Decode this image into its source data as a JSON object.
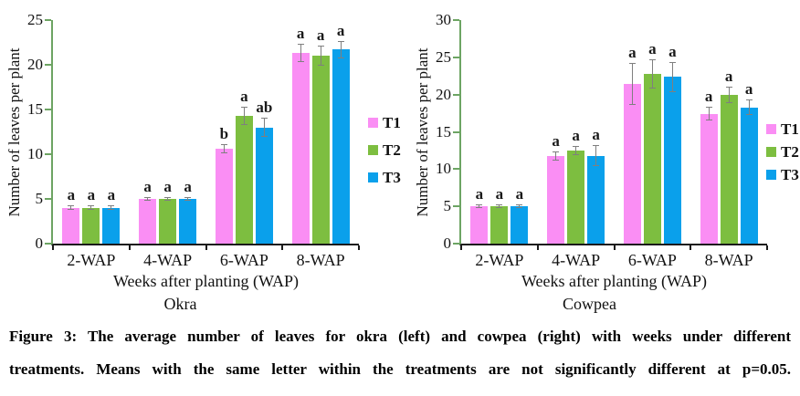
{
  "figure": {
    "caption_line1": "Figure 3: The average number of leaves for okra (left) and cowpea (right) with weeks under different",
    "caption_line2": "treatments. Means with the same letter within the treatments are not significantly different at p=0.05."
  },
  "colors": {
    "t1_pink": "#fa8ef4",
    "t2_green": "#7dbe40",
    "t3_blue": "#0aa0eb",
    "axis_green": "#6da463",
    "axis_black": "#1a1a1a",
    "error_bar_gray": "#7f7f7f"
  },
  "chart_data": [
    {
      "type": "bar",
      "title": "Okra",
      "xlabel": "Weeks after planting (WAP)",
      "ylabel": "Number of leaves per plant",
      "ylim": [
        0,
        25
      ],
      "yticks": [
        0,
        5,
        10,
        15,
        20,
        25
      ],
      "grid": false,
      "legend_position": "right",
      "categories": [
        "2-WAP",
        "4-WAP",
        "6-WAP",
        "8-WAP"
      ],
      "series": [
        {
          "name": "T1",
          "color": "#fa8ef4",
          "values": [
            4.0,
            5.0,
            10.6,
            21.3
          ],
          "errors": [
            0.15,
            0.1,
            0.4,
            0.9
          ],
          "letters": [
            "a",
            "a",
            "b",
            "a"
          ]
        },
        {
          "name": "T2",
          "color": "#7dbe40",
          "values": [
            4.0,
            5.0,
            14.3,
            21.0
          ],
          "errors": [
            0.15,
            0.1,
            0.9,
            1.0
          ],
          "letters": [
            "a",
            "a",
            "a",
            "a"
          ]
        },
        {
          "name": "T3",
          "color": "#0aa0eb",
          "values": [
            4.0,
            5.0,
            13.0,
            21.7
          ],
          "errors": [
            0.15,
            0.1,
            1.0,
            0.9
          ],
          "letters": [
            "a",
            "a",
            "ab",
            "a"
          ]
        }
      ]
    },
    {
      "type": "bar",
      "title": "Cowpea",
      "xlabel": "Weeks after planting (WAP)",
      "ylabel": "Number of leaves per plant",
      "ylim": [
        0,
        30
      ],
      "yticks": [
        0,
        5,
        10,
        15,
        20,
        25,
        30
      ],
      "grid": false,
      "legend_position": "right",
      "categories": [
        "2-WAP",
        "4-WAP",
        "6-WAP",
        "8-WAP"
      ],
      "series": [
        {
          "name": "T1",
          "color": "#fa8ef4",
          "values": [
            5.0,
            11.8,
            21.4,
            17.4
          ],
          "errors": [
            0.15,
            0.5,
            2.7,
            0.8
          ],
          "letters": [
            "a",
            "a",
            "a",
            "a"
          ]
        },
        {
          "name": "T2",
          "color": "#7dbe40",
          "values": [
            5.0,
            12.5,
            22.8,
            20.0
          ],
          "errors": [
            0.15,
            0.5,
            1.8,
            1.0
          ],
          "letters": [
            "a",
            "a",
            "a",
            "a"
          ]
        },
        {
          "name": "T3",
          "color": "#0aa0eb",
          "values": [
            5.0,
            11.8,
            22.4,
            18.3
          ],
          "errors": [
            0.15,
            1.3,
            1.9,
            0.9
          ],
          "letters": [
            "a",
            "a",
            "a",
            "a"
          ]
        }
      ]
    }
  ]
}
